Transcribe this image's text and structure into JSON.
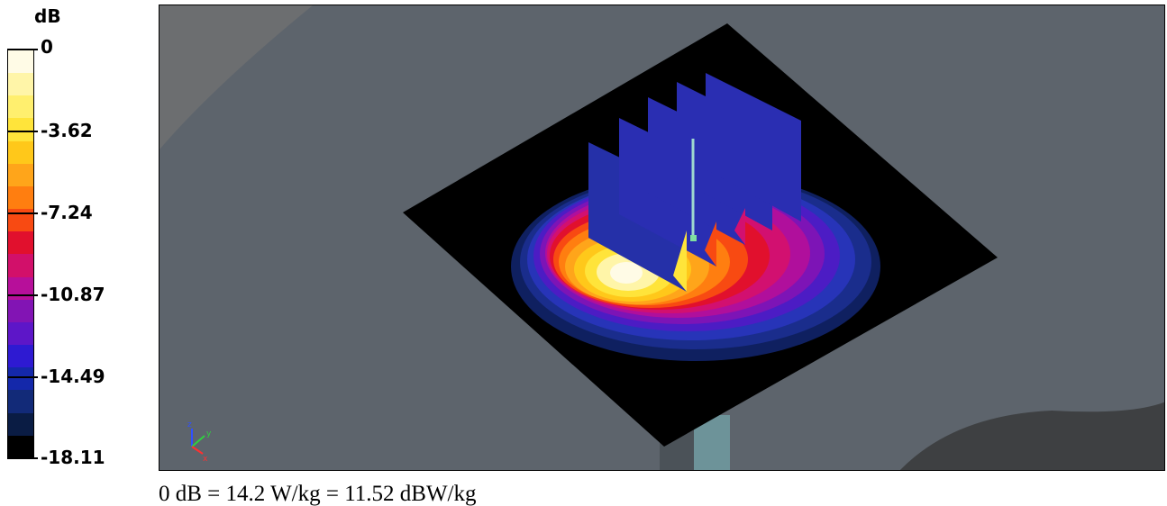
{
  "legend": {
    "unit": "dB",
    "ticks": [
      "0",
      "-3.62",
      "-7.24",
      "-10.87",
      "-14.49",
      "-18.11"
    ],
    "colors": [
      "#fffbe6",
      "#fff5a8",
      "#ffef6e",
      "#ffe43a",
      "#ffc81a",
      "#ffa51a",
      "#ff7e10",
      "#f84a12",
      "#e1102d",
      "#d2106a",
      "#b70f9a",
      "#8214b4",
      "#5d16c8",
      "#2e1ad2",
      "#1428aa",
      "#122a78",
      "#0a1c44",
      "#000000"
    ]
  },
  "viewport": {
    "background_color": "#5d646c",
    "axis_labels": {
      "x": "x",
      "y": "y",
      "z": "z"
    }
  },
  "caption": "0 dB = 14.2 W/kg = 11.52 dBW/kg"
}
